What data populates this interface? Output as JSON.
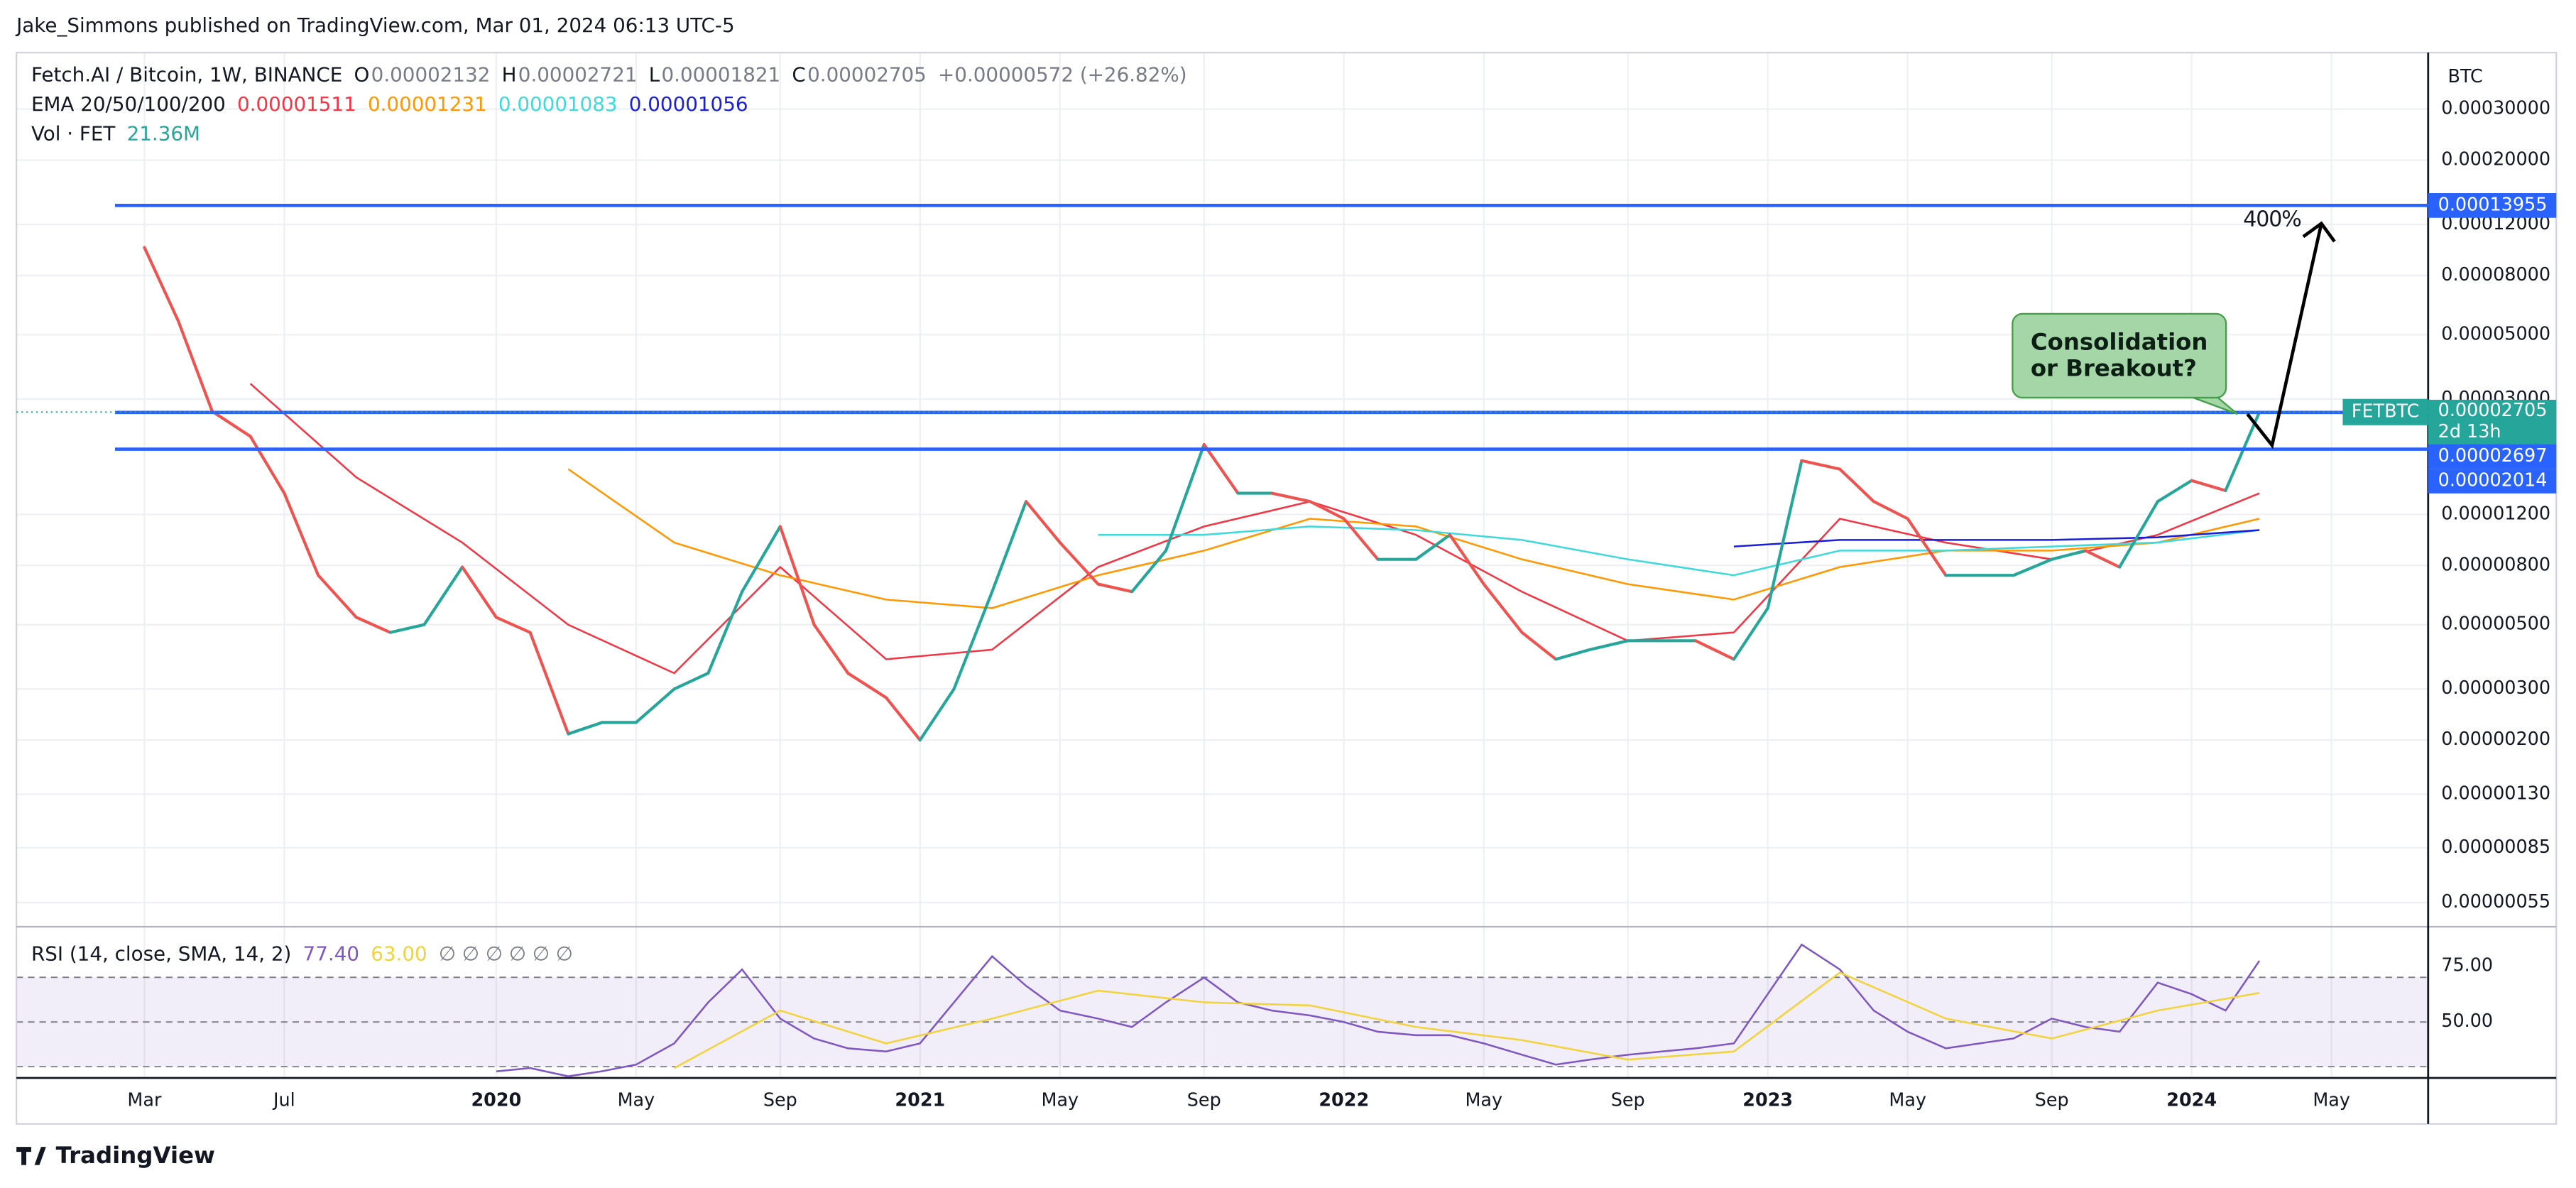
{
  "header": {
    "published": "Jake_Simmons published on TradingView.com, Mar 01, 2024 06:13 UTC-5"
  },
  "chart_data": [
    {
      "type": "line",
      "title": "Fetch.AI / Bitcoin, 1W, BINANCE",
      "ohlc": [
        {
          "name": "O",
          "value": 2.132e-05
        },
        {
          "name": "H",
          "value": 2.721e-05
        },
        {
          "name": "L",
          "value": 1.821e-05
        },
        {
          "name": "C",
          "value": 2.705e-05
        }
      ],
      "change": "+0.00000572 (+26.82%)",
      "ema": {
        "label": "EMA 20/50/100/200",
        "last": [
          1.511e-05,
          1.231e-05,
          1.083e-05,
          1.056e-05
        ],
        "colors": [
          "#f23645",
          "#ff9800",
          "#3fd9dc",
          "#1a1fd6"
        ],
        "x": [
          2019.42,
          2019.67,
          2019.92,
          2020.17,
          2020.42,
          2020.67,
          2020.92,
          2021.17,
          2021.42,
          2021.67,
          2021.92,
          2022.17,
          2022.42,
          2022.67,
          2022.92,
          2023.17,
          2023.42,
          2023.67,
          2023.92,
          2024.16
        ],
        "lines": [
          [
            3.39e-05,
            1.61e-05,
            9.6e-06,
            5e-06,
            3.4e-06,
            7.9e-06,
            3.8e-06,
            4.1e-06,
            7.9e-06,
            1.09e-05,
            1.33e-05,
            1.02e-05,
            6.5e-06,
            4.4e-06,
            4.7e-06,
            1.16e-05,
            9.6e-06,
            8.4e-06,
            1.02e-05,
            1.42e-05
          ],
          [
            null,
            null,
            null,
            1.72e-05,
            9.6e-06,
            7.4e-06,
            6.1e-06,
            5.7e-06,
            7.4e-06,
            9e-06,
            1.16e-05,
            1.09e-05,
            8.4e-06,
            6.9e-06,
            6.1e-06,
            7.9e-06,
            9e-06,
            9e-06,
            9.6e-06,
            1.16e-05
          ],
          [
            null,
            null,
            null,
            null,
            null,
            null,
            null,
            null,
            1.02e-05,
            1.02e-05,
            1.09e-05,
            1.06e-05,
            9.8e-06,
            8.4e-06,
            7.4e-06,
            9e-06,
            9e-06,
            9.3e-06,
            9.6e-06,
            1.06e-05
          ],
          [
            null,
            null,
            null,
            null,
            null,
            null,
            null,
            null,
            null,
            null,
            null,
            null,
            null,
            null,
            9.3e-06,
            9.8e-06,
            9.8e-06,
            9.8e-06,
            1e-05,
            1.06e-05
          ]
        ]
      },
      "volume": {
        "label": "Vol · FET",
        "last": "21.36M"
      },
      "currency": "BTC",
      "log_scale": true,
      "grid": true,
      "xlim": [
        2018.868,
        2024.558
      ],
      "xticks": [
        {
          "value": 2019.17,
          "label": "Mar"
        },
        {
          "value": 2019.5,
          "label": "Jul"
        },
        2020,
        {
          "value": 2020.33,
          "label": "May"
        },
        {
          "value": 2020.67,
          "label": "Sep"
        },
        2021,
        {
          "value": 2021.33,
          "label": "May"
        },
        {
          "value": 2021.67,
          "label": "Sep"
        },
        2022,
        {
          "value": 2022.33,
          "label": "May"
        },
        {
          "value": 2022.67,
          "label": "Sep"
        },
        2023,
        {
          "value": 2023.33,
          "label": "May"
        },
        {
          "value": 2023.67,
          "label": "Sep"
        },
        2024,
        {
          "value": 2024.33,
          "label": "May"
        }
      ],
      "ylim": [
        4.6e-07,
        0.00047
      ],
      "yticks": [
        {
          "value": 0.0003,
          "label": "0.00030000"
        },
        {
          "value": 0.0002,
          "label": "0.00020000"
        },
        {
          "value": 0.00012,
          "label": "0.00012000"
        },
        {
          "value": 8e-05,
          "label": "0.00008000"
        },
        {
          "value": 5e-05,
          "label": "0.00005000"
        },
        {
          "value": 3e-05,
          "label": "0.00003000"
        },
        {
          "value": 1.2e-05,
          "label": "0.00001200"
        },
        {
          "value": 8e-06,
          "label": "0.00000800"
        },
        {
          "value": 5e-06,
          "label": "0.00000500"
        },
        {
          "value": 3e-06,
          "label": "0.00000300"
        },
        {
          "value": 2e-06,
          "label": "0.00000200"
        },
        {
          "value": 1.3e-06,
          "label": "0.00000130"
        },
        {
          "value": 8.5e-07,
          "label": "0.00000085"
        },
        {
          "value": 5.5e-07,
          "label": "0.00000055"
        }
      ],
      "x": [
        2019.17,
        2019.25,
        2019.33,
        2019.42,
        2019.5,
        2019.58,
        2019.67,
        2019.75,
        2019.83,
        2019.92,
        2020,
        2020.08,
        2020.17,
        2020.25,
        2020.33,
        2020.42,
        2020.5,
        2020.58,
        2020.67,
        2020.75,
        2020.83,
        2020.92,
        2021,
        2021.08,
        2021.17,
        2021.25,
        2021.33,
        2021.42,
        2021.5,
        2021.58,
        2021.67,
        2021.75,
        2021.83,
        2021.92,
        2022,
        2022.08,
        2022.17,
        2022.25,
        2022.33,
        2022.42,
        2022.5,
        2022.58,
        2022.67,
        2022.75,
        2022.83,
        2022.92,
        2023,
        2023.08,
        2023.17,
        2023.25,
        2023.33,
        2023.42,
        2023.5,
        2023.58,
        2023.67,
        2023.75,
        2023.83,
        2023.92,
        2024,
        2024.08,
        2024.16
      ],
      "series": [
        {
          "name": "FETBTC",
          "color": "#26a69a",
          "up_color": "#26a69a",
          "down_color": "#ef5350",
          "countdown": "2d 13h",
          "values": [
            0.0001,
            5.57e-05,
            2.72e-05,
            2.23e-05,
            1.42e-05,
            7.4e-06,
            5.3e-06,
            4.7e-06,
            5e-06,
            7.9e-06,
            5.3e-06,
            4.7e-06,
            2.1e-06,
            2.3e-06,
            2.3e-06,
            3e-06,
            3.4e-06,
            6.5e-06,
            1.09e-05,
            5e-06,
            3.4e-06,
            2.8e-06,
            2e-06,
            3e-06,
            6.5e-06,
            1.33e-05,
            9.6e-06,
            6.9e-06,
            6.5e-06,
            9e-06,
            2.09e-05,
            1.42e-05,
            1.42e-05,
            1.33e-05,
            1.16e-05,
            8.4e-06,
            8.4e-06,
            1.02e-05,
            6.9e-06,
            4.7e-06,
            3.8e-06,
            4.1e-06,
            4.4e-06,
            4.4e-06,
            4.4e-06,
            3.8e-06,
            5.7e-06,
            1.84e-05,
            1.72e-05,
            1.33e-05,
            1.16e-05,
            7.4e-06,
            7.4e-06,
            7.4e-06,
            8.4e-06,
            9e-06,
            7.9e-06,
            1.33e-05,
            1.57e-05,
            1.45e-05,
            2.705e-05
          ]
        }
      ],
      "levels": [
        {
          "value": 0.00013955,
          "color": "#2962ff"
        },
        {
          "value": 2.697e-05,
          "color": "#2962ff"
        },
        {
          "value": 2.014e-05,
          "color": "#2962ff"
        }
      ],
      "annotations": {
        "callout": [
          "Consolidation",
          "or Breakout?"
        ],
        "target": "400%"
      }
    },
    {
      "type": "line",
      "title": "RSI (14, close, SMA, 14, 2)",
      "legend_values": [
        "77.40",
        "63.00"
      ],
      "na_marks": "∅ ∅ ∅ ∅ ∅ ∅",
      "color": "#7e57c2",
      "ylim": [
        25.7,
        91.9
      ],
      "yticks": [
        {
          "value": 75,
          "label": "75.00"
        },
        {
          "value": 50,
          "label": "50.00"
        }
      ],
      "band": [
        30,
        70
      ],
      "levels": [
        70,
        50,
        30
      ],
      "values": [
        null,
        null,
        null,
        null,
        null,
        null,
        null,
        null,
        null,
        null,
        27.9,
        29.4,
        25.7,
        28,
        30.9,
        40.4,
        58.8,
        73.5,
        51.5,
        42.6,
        38.2,
        36.8,
        40.4,
        58.8,
        79.4,
        66.2,
        55.1,
        51.5,
        47.8,
        58.8,
        69.9,
        58.8,
        55.1,
        52.9,
        50,
        45.6,
        44.1,
        44.1,
        40.4,
        35.3,
        30.9,
        33.1,
        35.3,
        36.8,
        38.2,
        40.4,
        62.5,
        84.6,
        73.5,
        55.1,
        45.6,
        38.2,
        40.4,
        42.6,
        51.5,
        47.8,
        45.6,
        67.6,
        62.5,
        55.1,
        77.4
      ],
      "sma": {
        "color": "#f2d33c",
        "values": [
          null,
          null,
          null,
          null,
          29.4,
          55.1,
          40.4,
          51.5,
          64,
          58.8,
          57.4,
          47.8,
          41.9,
          33.1,
          36.8,
          72.1,
          51.5,
          42.6,
          55.1,
          63
        ]
      }
    }
  ],
  "footer": {
    "brand": "TradingView"
  }
}
